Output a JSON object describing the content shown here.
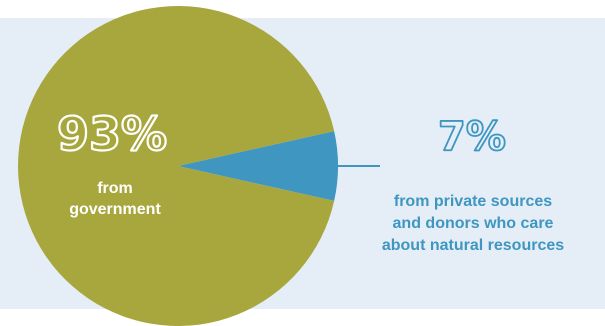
{
  "chart_data": {
    "type": "pie",
    "slices": [
      {
        "label": "from government",
        "percent_text": "93%",
        "value": 93,
        "color": "#a8a73d"
      },
      {
        "label": "from private sources and donors who care about natural resources",
        "percent_text": "7%",
        "value": 7,
        "color": "#3e96c1"
      }
    ],
    "annotations": {
      "government": {
        "percent": "93%",
        "lines": [
          "from",
          "government"
        ]
      },
      "private": {
        "percent": "7%",
        "lines": [
          "from private sources",
          "and donors who care",
          "about natural resources"
        ]
      }
    }
  },
  "colors": {
    "background": "#e5eef6",
    "government_slice": "#a8a73d",
    "private_slice": "#3e96c1",
    "accent_text": "#3e96c1",
    "leader_line": "#3e96c1",
    "white_text": "#ffffff"
  }
}
